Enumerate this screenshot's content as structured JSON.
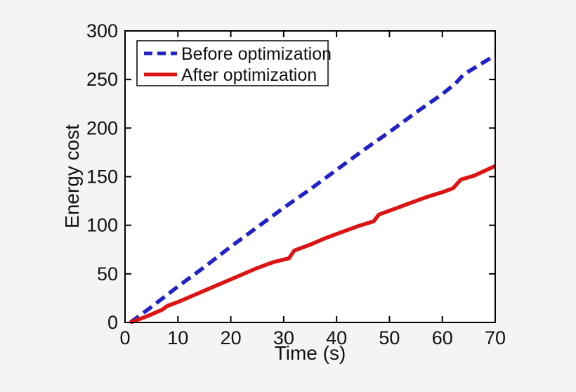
{
  "figure": {
    "background_color": "#f5f4f2",
    "plot_background_color": "#ffffff",
    "axis_color": "#000000",
    "text_color": "#111111"
  },
  "chart_data": {
    "type": "line",
    "title": "",
    "xlabel": "Time (s)",
    "ylabel": "Energy cost",
    "xlim": [
      0,
      70
    ],
    "ylim": [
      0,
      300
    ],
    "x_ticks": [
      0,
      10,
      20,
      30,
      40,
      50,
      60,
      70
    ],
    "y_ticks": [
      0,
      50,
      100,
      150,
      200,
      250,
      300
    ],
    "grid": false,
    "legend": {
      "position": "top-left",
      "border": true
    },
    "series": [
      {
        "name": "Before optimization",
        "color": "#2121c8",
        "style": "dashed",
        "line_width": 5.5,
        "x": [
          1,
          5,
          10,
          15,
          20,
          25,
          30,
          35,
          40,
          45,
          50,
          55,
          60,
          62.5,
          64,
          67,
          70
        ],
        "y": [
          0,
          16,
          37,
          57,
          78,
          98,
          118,
          137,
          157,
          177,
          196,
          216,
          235,
          246,
          255,
          265,
          275
        ]
      },
      {
        "name": "After optimization",
        "color": "#dc1414",
        "style": "solid",
        "line_width": 5.5,
        "x": [
          1,
          4,
          7,
          8,
          10,
          13,
          16,
          19,
          22,
          25,
          28,
          31,
          32,
          35,
          38,
          41,
          44,
          47,
          48,
          51,
          54,
          57,
          60,
          62,
          63.5,
          66,
          70
        ],
        "y": [
          0,
          6,
          13,
          17,
          21,
          28,
          35,
          42,
          49,
          56,
          62,
          66,
          74,
          80,
          87,
          93,
          99,
          104,
          111,
          117,
          123,
          129,
          134,
          138,
          147,
          151,
          161
        ]
      }
    ]
  }
}
